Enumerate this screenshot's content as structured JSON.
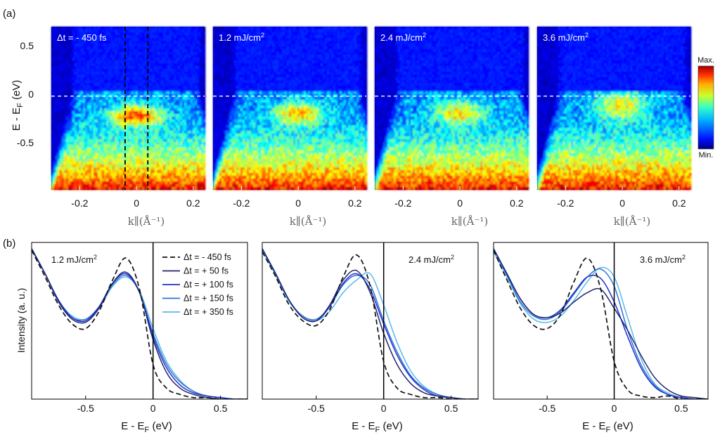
{
  "figure": {
    "panel_a_label": "(a)",
    "panel_b_label": "(b)"
  },
  "colors": {
    "curve_m450": "#111111",
    "curve_50": "#23266e",
    "curve_100": "#1f2fc9",
    "curve_150": "#2e73d6",
    "curve_350": "#59b8e8"
  },
  "chart_data": [
    {
      "type": "heatmap",
      "panel": "a",
      "ylabel_main": "E - E",
      "ylabel_sub": "F",
      "ylabel_unit": " (eV)",
      "xlabel": "k∥(Å⁻¹)",
      "xlim": [
        -0.3,
        0.24
      ],
      "ylim": [
        -0.97,
        0.72
      ],
      "x_ticks": [
        "-0.2",
        "0",
        "0.2"
      ],
      "y_ticks": [
        "0.5",
        "0",
        "-0.5"
      ],
      "colorbar": {
        "max_label": "Max.",
        "min_label": "Min."
      },
      "fermi_line_energy": 0,
      "integration_window_k": [
        -0.04,
        0.04
      ],
      "maps": [
        {
          "label": "Δt = - 450 fs",
          "label_sup": "",
          "feature_energy": -0.2,
          "feature_halfwidth": 0.11,
          "feature_intensity": 1.0
        },
        {
          "label": "1.2 mJ/cm",
          "label_sup": "2",
          "feature_energy": -0.18,
          "feature_halfwidth": 0.12,
          "feature_intensity": 0.78
        },
        {
          "label": "2.4 mJ/cm",
          "label_sup": "2",
          "feature_energy": -0.17,
          "feature_halfwidth": 0.12,
          "feature_intensity": 0.72
        },
        {
          "label": "3.6 mJ/cm",
          "label_sup": "2",
          "feature_energy": -0.1,
          "feature_halfwidth": 0.15,
          "feature_intensity": 0.68
        }
      ]
    },
    {
      "type": "line",
      "panel": "b",
      "ylabel": "Intensity (a. u.)",
      "xlabel_main": "E - E",
      "xlabel_sub": "F",
      "xlabel_unit": " (eV)",
      "xlim": [
        -0.9,
        0.7
      ],
      "ylim": [
        0,
        1.0
      ],
      "x_ticks": [
        "-0.5",
        "0",
        "0.5"
      ],
      "fermi_line": 0,
      "legend": {
        "placement": "top-right of first panel",
        "entries": [
          "Δt = - 450 fs",
          "Δt = + 50 fs",
          "Δt = + 100 fs",
          "Δt = + 150 fs",
          "Δt = + 350 fs"
        ]
      },
      "panels": [
        {
          "label": "1.2 mJ/cm",
          "label_sup": "2",
          "series": [
            {
              "name": "Δt = - 450 fs",
              "x": [
                -0.9,
                -0.8,
                -0.7,
                -0.6,
                -0.5,
                -0.4,
                -0.3,
                -0.2,
                -0.1,
                0.0,
                0.1,
                0.2,
                0.3,
                0.4,
                0.5,
                0.6,
                0.7
              ],
              "y": [
                0.95,
                0.78,
                0.6,
                0.48,
                0.45,
                0.56,
                0.76,
                0.9,
                0.7,
                0.22,
                0.07,
                0.03,
                0.01,
                0.01,
                0.0,
                0.0,
                0.0
              ]
            },
            {
              "name": "Δt = + 50 fs",
              "x": [
                -0.9,
                -0.8,
                -0.7,
                -0.6,
                -0.5,
                -0.4,
                -0.3,
                -0.2,
                -0.1,
                0.0,
                0.1,
                0.2,
                0.3,
                0.4,
                0.5,
                0.6,
                0.7
              ],
              "y": [
                0.96,
                0.8,
                0.62,
                0.51,
                0.49,
                0.58,
                0.74,
                0.81,
                0.68,
                0.38,
                0.17,
                0.07,
                0.03,
                0.01,
                0.0,
                0.0,
                0.0
              ]
            },
            {
              "name": "Δt = + 100 fs",
              "x": [
                -0.9,
                -0.8,
                -0.7,
                -0.6,
                -0.5,
                -0.4,
                -0.3,
                -0.2,
                -0.1,
                0.0,
                0.1,
                0.2,
                0.3,
                0.4,
                0.5,
                0.6,
                0.7
              ],
              "y": [
                0.96,
                0.8,
                0.63,
                0.52,
                0.5,
                0.59,
                0.74,
                0.8,
                0.68,
                0.4,
                0.2,
                0.09,
                0.04,
                0.02,
                0.01,
                0.0,
                0.0
              ]
            },
            {
              "name": "Δt = + 150 fs",
              "x": [
                -0.9,
                -0.8,
                -0.7,
                -0.6,
                -0.5,
                -0.4,
                -0.3,
                -0.2,
                -0.1,
                0.0,
                0.1,
                0.2,
                0.3,
                0.4,
                0.5,
                0.6,
                0.7
              ],
              "y": [
                0.96,
                0.8,
                0.63,
                0.52,
                0.51,
                0.59,
                0.73,
                0.79,
                0.68,
                0.42,
                0.22,
                0.11,
                0.05,
                0.02,
                0.01,
                0.0,
                0.0
              ]
            },
            {
              "name": "Δt = + 350 fs",
              "x": [
                -0.9,
                -0.8,
                -0.7,
                -0.6,
                -0.5,
                -0.4,
                -0.3,
                -0.2,
                -0.1,
                0.0,
                0.1,
                0.2,
                0.3,
                0.4,
                0.5,
                0.6,
                0.7
              ],
              "y": [
                0.95,
                0.8,
                0.63,
                0.53,
                0.51,
                0.58,
                0.72,
                0.78,
                0.69,
                0.45,
                0.24,
                0.12,
                0.05,
                0.02,
                0.01,
                0.0,
                0.0
              ]
            }
          ]
        },
        {
          "label": "2.4 mJ/cm",
          "label_sup": "2",
          "series": [
            {
              "name": "Δt = - 450 fs",
              "x": [
                -0.9,
                -0.8,
                -0.7,
                -0.6,
                -0.5,
                -0.4,
                -0.3,
                -0.2,
                -0.1,
                0.0,
                0.1,
                0.2,
                0.3,
                0.4,
                0.5,
                0.6,
                0.7
              ],
              "y": [
                0.94,
                0.78,
                0.6,
                0.5,
                0.47,
                0.57,
                0.78,
                0.92,
                0.72,
                0.24,
                0.07,
                0.03,
                0.01,
                0.01,
                0.0,
                0.0,
                0.0
              ]
            },
            {
              "name": "Δt = + 50 fs",
              "x": [
                -0.9,
                -0.8,
                -0.7,
                -0.6,
                -0.5,
                -0.4,
                -0.3,
                -0.2,
                -0.1,
                0.0,
                0.1,
                0.2,
                0.3,
                0.4,
                0.5,
                0.6,
                0.7
              ],
              "y": [
                0.96,
                0.8,
                0.63,
                0.52,
                0.5,
                0.6,
                0.76,
                0.82,
                0.68,
                0.42,
                0.22,
                0.1,
                0.04,
                0.02,
                0.01,
                0.0,
                0.0
              ]
            },
            {
              "name": "Δt = + 100 fs",
              "x": [
                -0.9,
                -0.8,
                -0.7,
                -0.6,
                -0.5,
                -0.4,
                -0.3,
                -0.2,
                -0.1,
                0.0,
                0.1,
                0.2,
                0.3,
                0.4,
                0.5,
                0.6,
                0.7
              ],
              "y": [
                0.96,
                0.8,
                0.63,
                0.52,
                0.5,
                0.59,
                0.74,
                0.8,
                0.7,
                0.48,
                0.28,
                0.14,
                0.06,
                0.02,
                0.01,
                0.0,
                0.0
              ]
            },
            {
              "name": "Δt = + 150 fs",
              "x": [
                -0.9,
                -0.8,
                -0.7,
                -0.6,
                -0.5,
                -0.4,
                -0.3,
                -0.2,
                -0.1,
                0.0,
                0.1,
                0.2,
                0.3,
                0.4,
                0.5,
                0.6,
                0.7
              ],
              "y": [
                0.96,
                0.8,
                0.63,
                0.53,
                0.51,
                0.59,
                0.73,
                0.79,
                0.73,
                0.5,
                0.3,
                0.15,
                0.07,
                0.03,
                0.01,
                0.0,
                0.0
              ]
            },
            {
              "name": "Δt = + 350 fs",
              "x": [
                -0.9,
                -0.8,
                -0.7,
                -0.6,
                -0.5,
                -0.4,
                -0.3,
                -0.2,
                -0.1,
                0.0,
                0.1,
                0.2,
                0.3,
                0.4,
                0.5,
                0.6,
                0.7
              ],
              "y": [
                0.95,
                0.79,
                0.62,
                0.53,
                0.5,
                0.56,
                0.68,
                0.76,
                0.8,
                0.6,
                0.36,
                0.18,
                0.08,
                0.03,
                0.01,
                0.0,
                0.0
              ]
            }
          ]
        },
        {
          "label": "3.6 mJ/cm",
          "label_sup": "2",
          "series": [
            {
              "name": "Δt = - 450 fs",
              "x": [
                -0.9,
                -0.8,
                -0.7,
                -0.6,
                -0.5,
                -0.4,
                -0.3,
                -0.2,
                -0.1,
                0.0,
                0.1,
                0.2,
                0.3,
                0.4,
                0.5,
                0.6,
                0.7
              ],
              "y": [
                0.95,
                0.76,
                0.58,
                0.47,
                0.45,
                0.54,
                0.75,
                0.9,
                0.7,
                0.24,
                0.06,
                0.02,
                0.01,
                0.02,
                0.0,
                0.0,
                0.0
              ]
            },
            {
              "name": "Δt = + 50 fs",
              "x": [
                -0.9,
                -0.8,
                -0.7,
                -0.6,
                -0.5,
                -0.4,
                -0.3,
                -0.2,
                -0.1,
                0.0,
                0.1,
                0.2,
                0.3,
                0.4,
                0.5,
                0.6,
                0.7
              ],
              "y": [
                0.96,
                0.8,
                0.64,
                0.54,
                0.52,
                0.55,
                0.62,
                0.68,
                0.7,
                0.58,
                0.44,
                0.28,
                0.14,
                0.06,
                0.02,
                0.01,
                0.0
              ]
            },
            {
              "name": "Δt = + 100 fs",
              "x": [
                -0.9,
                -0.8,
                -0.7,
                -0.6,
                -0.5,
                -0.4,
                -0.3,
                -0.2,
                -0.1,
                0.0,
                0.1,
                0.2,
                0.3,
                0.4,
                0.5,
                0.6,
                0.7
              ],
              "y": [
                0.96,
                0.8,
                0.64,
                0.54,
                0.52,
                0.57,
                0.68,
                0.78,
                0.77,
                0.62,
                0.4,
                0.2,
                0.08,
                0.03,
                0.01,
                0.0,
                0.0
              ]
            },
            {
              "name": "Δt = + 150 fs",
              "x": [
                -0.9,
                -0.8,
                -0.7,
                -0.6,
                -0.5,
                -0.4,
                -0.3,
                -0.2,
                -0.1,
                0.0,
                0.1,
                0.2,
                0.3,
                0.4,
                0.5,
                0.6,
                0.7
              ],
              "y": [
                0.96,
                0.79,
                0.62,
                0.53,
                0.51,
                0.56,
                0.67,
                0.78,
                0.83,
                0.72,
                0.44,
                0.22,
                0.09,
                0.03,
                0.01,
                0.0,
                0.0
              ]
            },
            {
              "name": "Δt = + 350 fs",
              "x": [
                -0.9,
                -0.8,
                -0.7,
                -0.6,
                -0.5,
                -0.4,
                -0.3,
                -0.2,
                -0.1,
                0.0,
                0.1,
                0.2,
                0.3,
                0.4,
                0.5,
                0.6,
                0.7
              ],
              "y": [
                0.94,
                0.78,
                0.61,
                0.51,
                0.49,
                0.53,
                0.63,
                0.75,
                0.84,
                0.78,
                0.52,
                0.26,
                0.1,
                0.04,
                0.01,
                0.0,
                0.0
              ]
            }
          ]
        }
      ]
    }
  ]
}
